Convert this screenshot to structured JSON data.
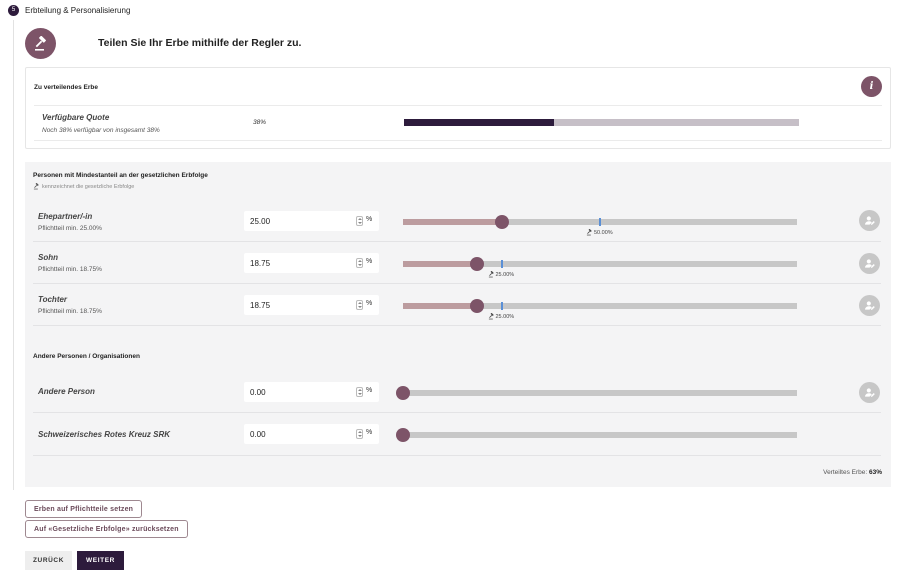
{
  "step": {
    "number": "5",
    "title": "Erbteilung & Personalisierung"
  },
  "hero": {
    "icon": "gavel-icon",
    "title": "Teilen Sie Ihr Erbe mithilfe der Regler zu."
  },
  "quota": {
    "section_title": "Zu verteilendes Erbe",
    "info_icon_glyph": "i",
    "label": "Verfügbare Quote",
    "subtitle": "Noch 38% verfügbar von insgesamt 38%",
    "value_text": "38%",
    "fill_percent": 38
  },
  "persons": {
    "section_title": "Personen mit Mindestanteil an der gesetzlichen Erbfolge",
    "legend": "kennzeichnet die gesetzliche Erbfolge",
    "percent_unit": "%",
    "rows": [
      {
        "name": "Ehepartner/-in",
        "sub": "Pflichtteil min. 25.00%",
        "value": "25.00",
        "slider_value": 25,
        "legal_share": 50,
        "legal_label": "50.00%"
      },
      {
        "name": "Sohn",
        "sub": "Pflichtteil min. 18.75%",
        "value": "18.75",
        "slider_value": 18.75,
        "legal_share": 25,
        "legal_label": "25.00%"
      },
      {
        "name": "Tochter",
        "sub": "Pflichtteil min. 18.75%",
        "value": "18.75",
        "slider_value": 18.75,
        "legal_share": 25,
        "legal_label": "25.00%"
      }
    ]
  },
  "others": {
    "section_title": "Andere Personen / Organisationen",
    "rows": [
      {
        "name": "Andere Person",
        "value": "0.00",
        "slider_value": 0
      },
      {
        "name": "Schweizerisches Rotes Kreuz SRK",
        "value": "0.00",
        "slider_value": 0
      }
    ]
  },
  "total": {
    "label": "Verteiltes Erbe:",
    "value": "63%"
  },
  "actions": {
    "set_compulsory": "Erben auf Pflichtteile setzen",
    "reset_legal": "Auf «Gesetzliche Erbfolge» zurücksetzen",
    "back": "ZURÜCK",
    "next": "WEITER"
  },
  "colors": {
    "brand_dark": "#2d1b3c",
    "brand_accent": "#7d5468",
    "slider_fill": "#bc9c9f",
    "legal_marker": "#5a8fd6"
  }
}
